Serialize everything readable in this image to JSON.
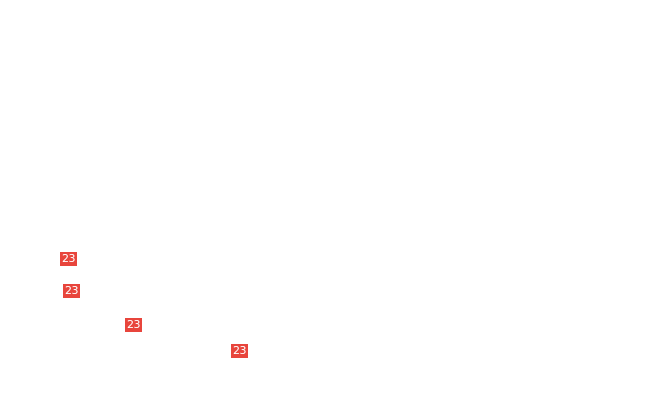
{
  "badge_color": "#e8453c",
  "badges": [
    {
      "label": "23"
    },
    {
      "label": "23"
    },
    {
      "label": "23"
    },
    {
      "label": "23"
    }
  ]
}
